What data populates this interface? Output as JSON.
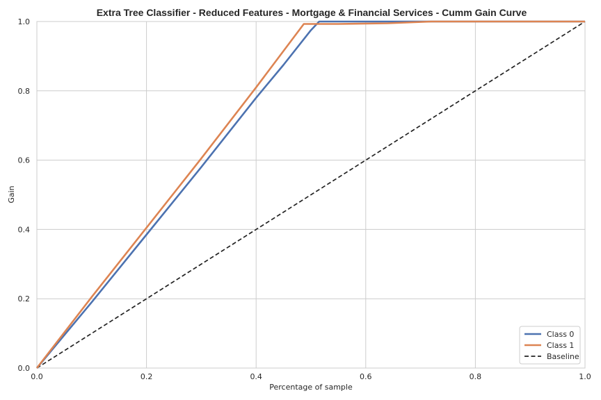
{
  "chart_data": {
    "type": "line",
    "title": "Extra Tree Classifier - Reduced Features - Mortgage & Financial Services - Cumm Gain Curve",
    "xlabel": "Percentage of sample",
    "ylabel": "Gain",
    "xlim": [
      0.0,
      1.0
    ],
    "ylim": [
      0.0,
      1.0
    ],
    "xticks": [
      "0.0",
      "0.2",
      "0.4",
      "0.6",
      "0.8",
      "1.0"
    ],
    "yticks": [
      "0.0",
      "0.2",
      "0.4",
      "0.6",
      "0.8",
      "1.0"
    ],
    "grid": true,
    "legend_position": "bottom-right",
    "series": [
      {
        "name": "Class 0",
        "color": "#4c72b0",
        "style": "solid",
        "points": [
          [
            0.0,
            0.0
          ],
          [
            0.1,
            0.19
          ],
          [
            0.2,
            0.385
          ],
          [
            0.3,
            0.58
          ],
          [
            0.4,
            0.78
          ],
          [
            0.45,
            0.875
          ],
          [
            0.5,
            0.975
          ],
          [
            0.515,
            1.0
          ],
          [
            1.0,
            1.0
          ]
        ]
      },
      {
        "name": "Class 1",
        "color": "#dd8452",
        "style": "solid",
        "points": [
          [
            0.0,
            0.0
          ],
          [
            0.1,
            0.205
          ],
          [
            0.2,
            0.405
          ],
          [
            0.3,
            0.605
          ],
          [
            0.4,
            0.81
          ],
          [
            0.487,
            0.993
          ],
          [
            0.55,
            0.993
          ],
          [
            0.64,
            0.995
          ],
          [
            0.72,
            1.0
          ],
          [
            1.0,
            1.0
          ]
        ]
      },
      {
        "name": "Baseline",
        "color": "#222222",
        "style": "dashed",
        "points": [
          [
            0.0,
            0.0
          ],
          [
            1.0,
            1.0
          ]
        ]
      }
    ]
  }
}
